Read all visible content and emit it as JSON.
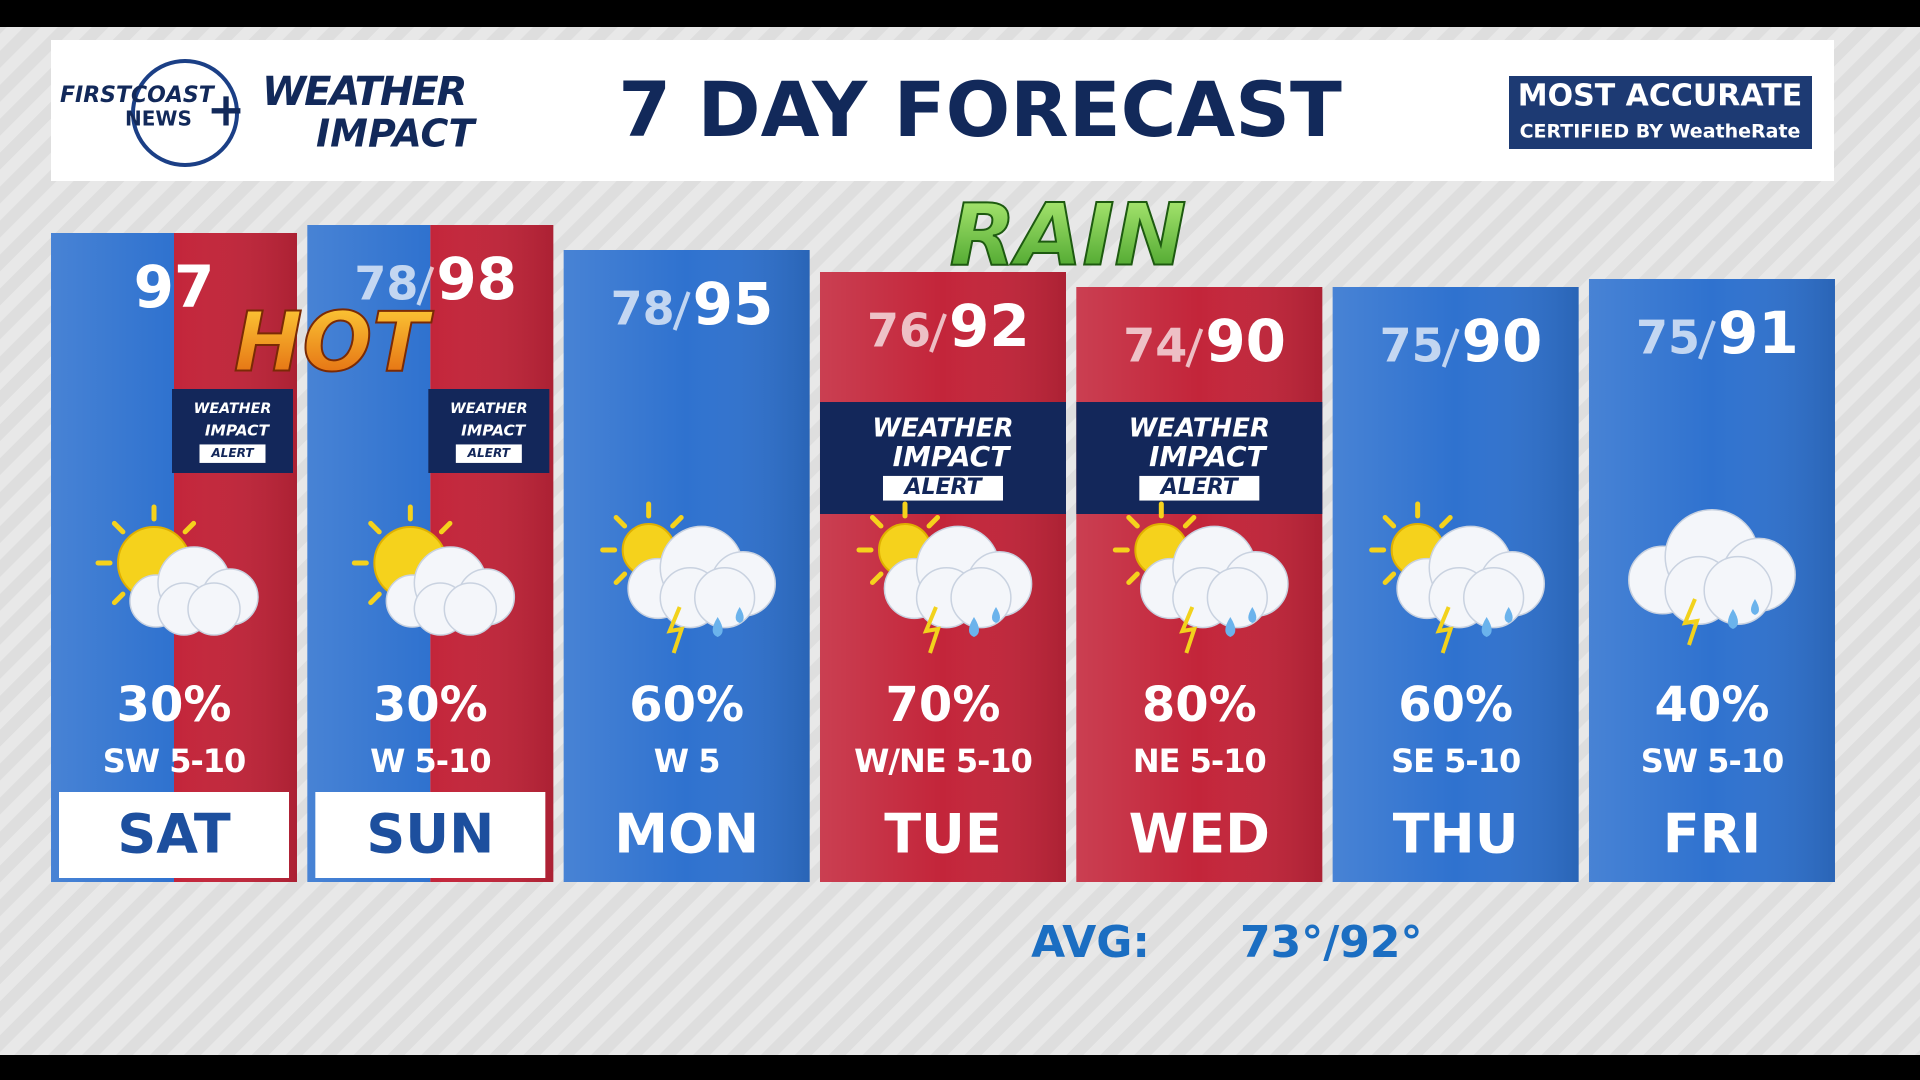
{
  "header": {
    "logo": {
      "station_line1": "FIRSTCOAST",
      "station_line2": "NEWS",
      "brand_line1": "WEATHER",
      "brand_line2": "IMPACT"
    },
    "title": "7 DAY FORECAST",
    "badge": {
      "line1": "MOST ACCURATE",
      "line2": "CERTIFIED BY WeatheRate"
    }
  },
  "callouts": {
    "hot": "HOT",
    "rain": "RAIN"
  },
  "days": [
    {
      "day": "SAT",
      "high": 97,
      "precip": "30%",
      "wind": "SW 5-10",
      "icon": "sun-cloud",
      "colors": [
        "#2f72cf",
        "#c3253a"
      ],
      "label_bg": "#ffffff",
      "label_color": "#1d4f9e",
      "alert": {
        "line1": "WEATHER",
        "line2": "IMPACT",
        "line3": "ALERT"
      }
    },
    {
      "day": "SUN",
      "low": 78,
      "high": 98,
      "precip": "30%",
      "wind": "W 5-10",
      "icon": "sun-cloud",
      "colors": [
        "#2f72cf",
        "#c3253a"
      ],
      "label_bg": "#ffffff",
      "label_color": "#1d4f9e",
      "alert": {
        "line1": "WEATHER",
        "line2": "IMPACT",
        "line3": "ALERT"
      }
    },
    {
      "day": "MON",
      "low": 78,
      "high": 95,
      "precip": "60%",
      "wind": "W 5",
      "icon": "sun-storm",
      "colors": [
        "#2f72cf"
      ]
    },
    {
      "day": "TUE",
      "low": 76,
      "high": 92,
      "precip": "70%",
      "wind": "W/NE 5-10",
      "icon": "sun-storm",
      "colors": [
        "#c3253a"
      ],
      "alert": {
        "line1": "WEATHER",
        "line2": "IMPACT",
        "line3": "ALERT"
      }
    },
    {
      "day": "WED",
      "low": 74,
      "high": 90,
      "precip": "80%",
      "wind": "NE 5-10",
      "icon": "sun-storm",
      "colors": [
        "#c3253a"
      ],
      "alert": {
        "line1": "WEATHER",
        "line2": "IMPACT",
        "line3": "ALERT"
      }
    },
    {
      "day": "THU",
      "low": 75,
      "high": 90,
      "precip": "60%",
      "wind": "SE 5-10",
      "icon": "sun-storm",
      "colors": [
        "#2f72cf"
      ]
    },
    {
      "day": "FRI",
      "low": 75,
      "high": 91,
      "precip": "40%",
      "wind": "SW 5-10",
      "icon": "storm",
      "colors": [
        "#2f72cf"
      ]
    }
  ],
  "footer": {
    "label": "AVG:",
    "value": "73°/92°"
  }
}
